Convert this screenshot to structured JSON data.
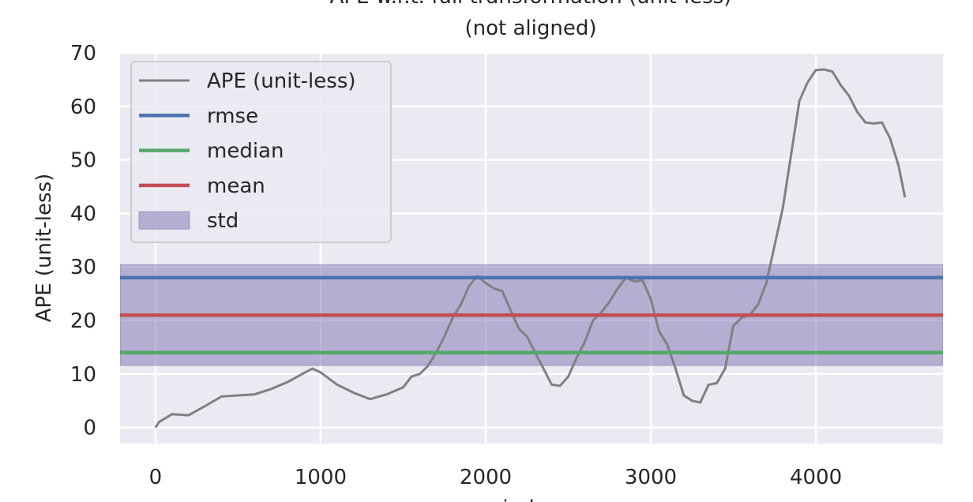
{
  "chart_data": {
    "type": "line",
    "title": "APE w.r.t. full transformation (unit-less)",
    "subtitle": "(not aligned)",
    "x_label": "index",
    "y_label": "APE (unit-less)",
    "xlim": [
      -215,
      4770
    ],
    "ylim": [
      -3,
      70
    ],
    "xticks": [
      0,
      1000,
      2000,
      3000,
      4000
    ],
    "yticks": [
      0,
      10,
      20,
      30,
      40,
      50,
      60,
      70
    ],
    "grid": true,
    "legend_position": "upper-left",
    "series": [
      {
        "name": "APE (unit-less)",
        "color": "#808080",
        "x": [
          0,
          20,
          100,
          200,
          300,
          400,
          500,
          600,
          700,
          800,
          900,
          950,
          1000,
          1100,
          1200,
          1300,
          1400,
          1500,
          1550,
          1600,
          1650,
          1700,
          1750,
          1800,
          1850,
          1900,
          1950,
          2000,
          2050,
          2100,
          2150,
          2200,
          2250,
          2300,
          2350,
          2400,
          2450,
          2500,
          2550,
          2600,
          2650,
          2700,
          2750,
          2800,
          2850,
          2900,
          2950,
          3000,
          3050,
          3100,
          3150,
          3200,
          3250,
          3300,
          3350,
          3400,
          3450,
          3500,
          3550,
          3600,
          3650,
          3700,
          3750,
          3800,
          3850,
          3900,
          3950,
          4000,
          4050,
          4100,
          4150,
          4200,
          4250,
          4300,
          4350,
          4400,
          4450,
          4500,
          4540
        ],
        "values": [
          0,
          1,
          2.5,
          2.3,
          4,
          5.8,
          6,
          6.2,
          7.2,
          8.5,
          10.2,
          11,
          10.3,
          8,
          6.5,
          5.3,
          6.2,
          7.5,
          9.5,
          10,
          11.5,
          14,
          17,
          20.5,
          23,
          26.5,
          28.3,
          27,
          26,
          25.5,
          22,
          18.5,
          17,
          14,
          11,
          8,
          7.8,
          9.5,
          13,
          16,
          20,
          21.5,
          23.5,
          26,
          28,
          27.3,
          27.5,
          24,
          18,
          15.5,
          11,
          6,
          5,
          4.7,
          8,
          8.3,
          11,
          19,
          20.5,
          21,
          23,
          27,
          34,
          41,
          51,
          61,
          64.5,
          66.8,
          66.9,
          66.5,
          64,
          62,
          59,
          57,
          56.8,
          57,
          54,
          49,
          43
        ]
      }
    ],
    "statistics": [
      {
        "name": "rmse",
        "color": "#4c72b0",
        "value": 28
      },
      {
        "name": "median",
        "color": "#55a868",
        "value": 14
      },
      {
        "name": "mean",
        "color": "#c44e52",
        "value": 21
      },
      {
        "name": "std",
        "color": "#8172b2",
        "value": 9.4
      }
    ]
  }
}
